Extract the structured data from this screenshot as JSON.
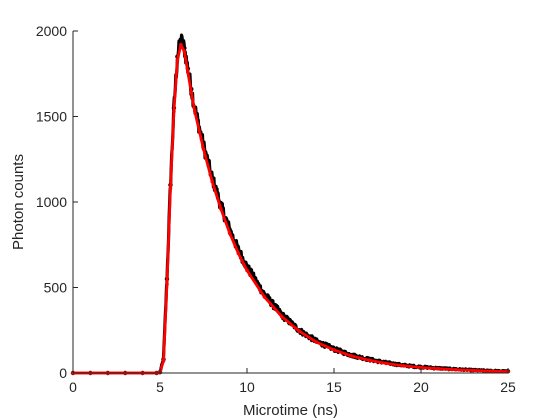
{
  "chart_data": {
    "type": "scatter",
    "title": "",
    "xlabel": "Microtime (ns)",
    "ylabel": "Photon counts",
    "xlim": [
      0,
      25
    ],
    "ylim": [
      0,
      2000
    ],
    "xticks": [
      0,
      5,
      10,
      15,
      20,
      25
    ],
    "yticks": [
      0,
      500,
      1000,
      1500,
      2000
    ],
    "grid": false,
    "legend": "none",
    "colors": {
      "axes": "#262626",
      "data": "#000000",
      "fit": "#ff0000"
    },
    "series": [
      {
        "style": "markers",
        "x": [
          0,
          1,
          2,
          3,
          4,
          4.8,
          5.0,
          5.2,
          5.4,
          5.6,
          5.8,
          6.0,
          6.2,
          6.4,
          6.6,
          6.8,
          7.0,
          7.5,
          8.0,
          8.5,
          9.0,
          9.5,
          10.0,
          11.0,
          12.0,
          13.0,
          14.0,
          15.0,
          16.0,
          17.0,
          18.0,
          19.0,
          20.0,
          21.0,
          22.0,
          23.0,
          24.0,
          25.0
        ],
        "y": [
          0,
          0,
          0,
          0,
          0,
          0,
          5,
          80,
          550,
          1100,
          1550,
          1850,
          1950,
          1900,
          1780,
          1660,
          1550,
          1330,
          1140,
          980,
          840,
          720,
          620,
          460,
          340,
          250,
          185,
          140,
          105,
          80,
          60,
          45,
          35,
          28,
          22,
          17,
          13,
          10
        ]
      },
      {
        "style": "line",
        "x": [
          0,
          1,
          2,
          3,
          4,
          4.8,
          5.0,
          5.2,
          5.4,
          5.6,
          5.8,
          6.0,
          6.2,
          6.4,
          6.6,
          6.8,
          7.0,
          7.5,
          8.0,
          8.5,
          9.0,
          9.5,
          10.0,
          11.0,
          12.0,
          13.0,
          14.0,
          15.0,
          16.0,
          17.0,
          18.0,
          19.0,
          20.0,
          21.0,
          22.0,
          23.0,
          24.0,
          25.0
        ],
        "y": [
          0,
          0,
          0,
          0,
          0,
          0,
          5,
          70,
          520,
          1080,
          1530,
          1830,
          1920,
          1880,
          1760,
          1640,
          1530,
          1310,
          1120,
          960,
          820,
          700,
          600,
          445,
          330,
          245,
          180,
          135,
          100,
          75,
          56,
          42,
          32,
          25,
          19,
          15,
          11,
          8
        ]
      }
    ]
  }
}
